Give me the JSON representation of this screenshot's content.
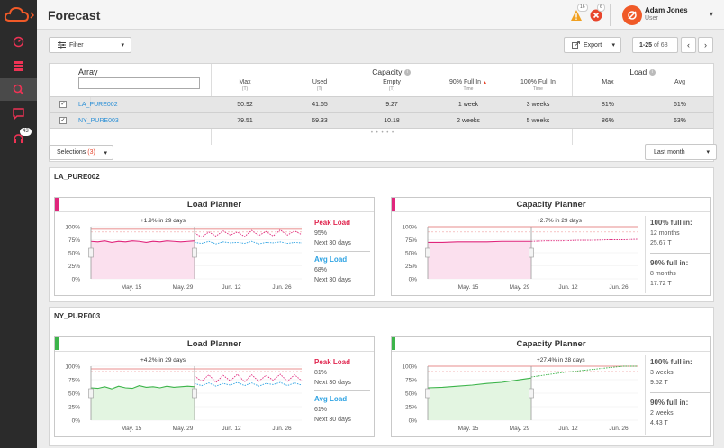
{
  "header": {
    "title": "Forecast",
    "warning_count": "16",
    "error_count": "6",
    "user_name": "Adam Jones",
    "user_role": "User"
  },
  "sidebar": {
    "items": [
      {
        "icon": "dashboard-icon"
      },
      {
        "icon": "storage-icon"
      },
      {
        "icon": "analysis-icon"
      },
      {
        "icon": "messages-icon"
      },
      {
        "icon": "support-icon",
        "badge": "43"
      }
    ]
  },
  "toolbar": {
    "filter_label": "Filter",
    "export_label": "Export",
    "pagination": {
      "range": "1-25",
      "of_label": "of 68"
    }
  },
  "table": {
    "array_header": "Array",
    "capacity_header": "Capacity",
    "load_header": "Load",
    "columns": [
      {
        "label": "Max",
        "sub": "(T)"
      },
      {
        "label": "Used",
        "sub": "(T)"
      },
      {
        "label": "Empty",
        "sub": "(T)"
      },
      {
        "label": "90% Full In",
        "sub": "Time"
      },
      {
        "label": "100% Full In",
        "sub": "Time"
      },
      {
        "label": "Max",
        "sub": ""
      },
      {
        "label": "Avg",
        "sub": ""
      }
    ],
    "rows": [
      {
        "name": "LA_PURE002",
        "max": "50.92",
        "used": "41.65",
        "empty": "9.27",
        "full90": "1 week",
        "full100": "3 weeks",
        "load_max": "81%",
        "load_avg": "61%"
      },
      {
        "name": "NY_PURE003",
        "max": "79.51",
        "used": "69.33",
        "empty": "10.18",
        "full90": "2 weeks",
        "full100": "5 weeks",
        "load_max": "86%",
        "load_avg": "63%"
      }
    ]
  },
  "selections": {
    "label": "Selections",
    "count": "(3)",
    "range": "Last month"
  },
  "panels": [
    {
      "title": "LA_PURE002",
      "load": {
        "title": "Load Planner",
        "annotation": "+1.9% in 29 days",
        "peak_label": "Peak Load",
        "peak_value": "95%",
        "peak_note": "Next 30 days",
        "avg_label": "Avg Load",
        "avg_value": "68%",
        "avg_note": "Next 30 days"
      },
      "capacity": {
        "title": "Capacity Planner",
        "annotation": "+2.7% in 29 days",
        "full100_label": "100% full in:",
        "full100_time": "12 months",
        "full100_size": "25.67 T",
        "full90_label": "90% full in:",
        "full90_time": "8 months",
        "full90_size": "17.72 T"
      }
    },
    {
      "title": "NY_PURE003",
      "load": {
        "title": "Load Planner",
        "annotation": "+4.2% in 29 days",
        "peak_label": "Peak Load",
        "peak_value": "81%",
        "peak_note": "Next 30 days",
        "avg_label": "Avg Load",
        "avg_value": "61%",
        "avg_note": "Next 30 days"
      },
      "capacity": {
        "title": "Capacity Planner",
        "annotation": "+27.4% in 28 days",
        "full100_label": "100% full in:",
        "full100_time": "3 weeks",
        "full100_size": "9.52 T",
        "full90_label": "90% full in:",
        "full90_time": "2 weeks",
        "full90_size": "4.43 T"
      }
    }
  ],
  "chart_data": [
    {
      "type": "line",
      "panel": "LA_PURE002",
      "chart": "Load Planner",
      "yticks": [
        "100%",
        "75%",
        "50%",
        "25%",
        "0%"
      ],
      "xticks": [
        "May. 15",
        "May. 29",
        "Jun. 12",
        "Jun. 26"
      ],
      "ylim": [
        0,
        100
      ],
      "series": [
        {
          "role": "actual",
          "color": "#e0267c",
          "y": [
            72,
            71,
            73,
            70,
            72,
            71,
            73,
            72,
            70,
            72,
            71,
            73,
            72,
            71,
            72,
            73
          ]
        },
        {
          "role": "forecast-peak",
          "color": "#e0267c",
          "y": [
            88,
            80,
            90,
            82,
            92,
            84,
            90,
            81,
            93,
            83,
            91,
            82,
            94,
            84,
            92,
            85
          ]
        },
        {
          "role": "forecast-avg",
          "color": "#2ea3e3",
          "y": [
            70,
            68,
            72,
            67,
            71,
            69,
            70,
            68,
            72,
            67,
            70,
            69,
            71,
            68,
            70,
            69
          ]
        }
      ],
      "reference_lines": [
        95,
        90
      ]
    },
    {
      "type": "area",
      "panel": "LA_PURE002",
      "chart": "Capacity Planner",
      "yticks": [
        "100%",
        "75%",
        "50%",
        "25%",
        "0%"
      ],
      "xticks": [
        "May. 15",
        "May. 29",
        "Jun. 12",
        "Jun. 26"
      ],
      "ylim": [
        0,
        100
      ],
      "series": [
        {
          "role": "actual",
          "color": "#e0267c",
          "y": [
            70,
            70,
            71,
            71,
            71,
            72,
            72,
            72
          ]
        },
        {
          "role": "forecast",
          "color": "#e0267c",
          "y": [
            72,
            73,
            73,
            74,
            74,
            75,
            75,
            76
          ]
        }
      ],
      "reference_lines": [
        100,
        90
      ]
    },
    {
      "type": "line",
      "panel": "NY_PURE003",
      "chart": "Load Planner",
      "yticks": [
        "100%",
        "75%",
        "50%",
        "25%",
        "0%"
      ],
      "xticks": [
        "May. 15",
        "May. 29",
        "Jun. 12",
        "Jun. 26"
      ],
      "ylim": [
        0,
        100
      ],
      "series": [
        {
          "role": "actual",
          "color": "#3cb44a",
          "y": [
            60,
            59,
            62,
            58,
            63,
            60,
            59,
            64,
            61,
            62,
            60,
            63,
            61,
            62,
            63,
            62
          ]
        },
        {
          "role": "forecast-peak",
          "color": "#e0267c",
          "y": [
            82,
            72,
            84,
            70,
            83,
            73,
            85,
            71,
            84,
            72,
            83,
            74,
            85,
            72,
            84,
            73
          ]
        },
        {
          "role": "forecast-avg",
          "color": "#2ea3e3",
          "y": [
            68,
            64,
            69,
            63,
            68,
            65,
            70,
            64,
            69,
            63,
            68,
            66,
            70,
            64,
            69,
            65
          ]
        }
      ],
      "reference_lines": [
        95,
        90
      ]
    },
    {
      "type": "area",
      "panel": "NY_PURE003",
      "chart": "Capacity Planner",
      "yticks": [
        "100%",
        "75%",
        "50%",
        "25%",
        "0%"
      ],
      "xticks": [
        "May. 15",
        "May. 29",
        "Jun. 12",
        "Jun. 26"
      ],
      "ylim": [
        0,
        100
      ],
      "series": [
        {
          "role": "actual",
          "color": "#3cb44a",
          "y": [
            60,
            61,
            63,
            65,
            68,
            70,
            74,
            78
          ]
        },
        {
          "role": "forecast",
          "color": "#3cb44a",
          "y": [
            80,
            84,
            88,
            91,
            94,
            97,
            100,
            104
          ]
        }
      ],
      "reference_lines": [
        100,
        90
      ]
    }
  ],
  "colors": {
    "pink": "#e0267c",
    "green": "#3cb44a",
    "blue": "#2ea3e3",
    "peak_label": "#e0264f",
    "avg_label": "#2ea3e3"
  }
}
